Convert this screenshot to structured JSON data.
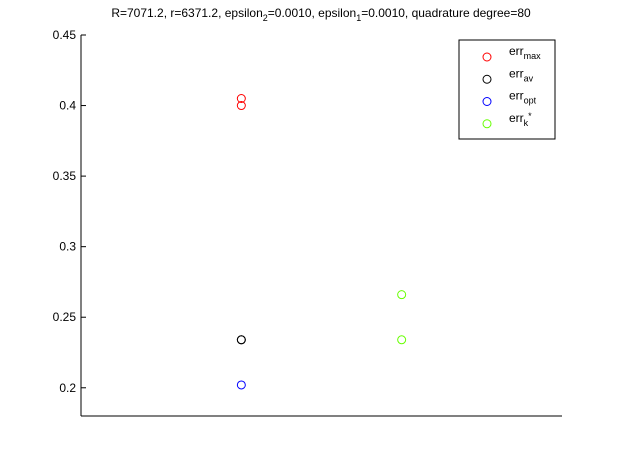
{
  "chart_data": {
    "type": "scatter",
    "title": "R=7071.2, r=6371.2, epsilon_2=0.0010, epsilon_1=0.0010, quadrature degree=80",
    "xlim": [
      0,
      3
    ],
    "xticks": [],
    "ylim": [
      0.18,
      0.45
    ],
    "yticks": [
      0.2,
      0.25,
      0.3,
      0.35,
      0.4,
      0.45
    ],
    "grid": false,
    "legend": "upper right",
    "series": [
      {
        "name": "err_{max}",
        "color": "#ff0000",
        "x": [
          1,
          1
        ],
        "values": [
          0.405,
          0.4
        ]
      },
      {
        "name": "err_{av}",
        "color": "#000000",
        "x": [
          1,
          1
        ],
        "values": [
          0.234,
          0.234
        ]
      },
      {
        "name": "err_{opt}",
        "color": "#0000ff",
        "x": [
          1
        ],
        "values": [
          0.202
        ]
      },
      {
        "name": "err_{k^*}",
        "color": "#66ff00",
        "x": [
          2,
          2
        ],
        "values": [
          0.266,
          0.234
        ]
      }
    ]
  }
}
